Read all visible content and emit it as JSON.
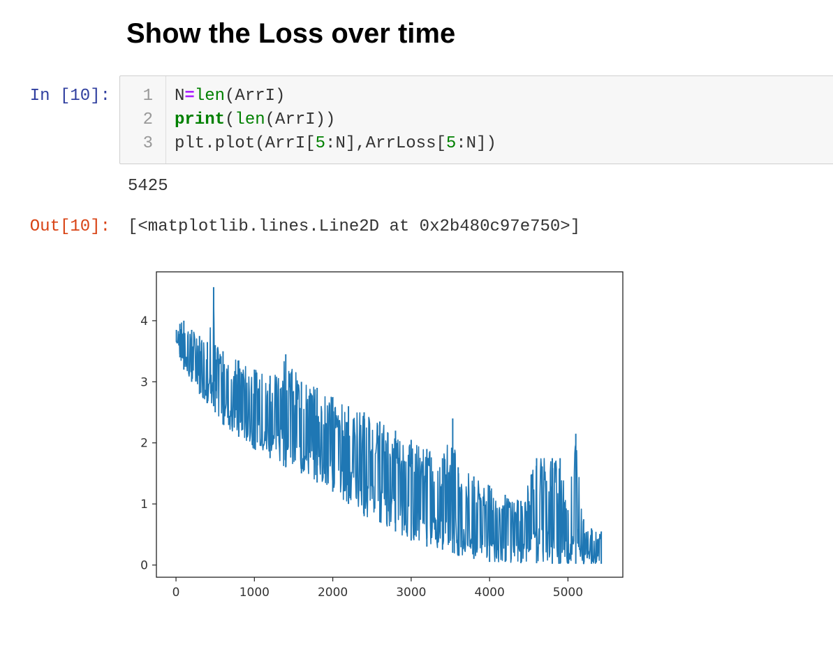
{
  "heading": "Show the Loss over time",
  "cell": {
    "in_prompt": "In [10]:",
    "out_prompt": "Out[10]:",
    "line_numbers": [
      "1",
      "2",
      "3"
    ],
    "code": {
      "line1": {
        "a": "N",
        "op": "=",
        "fn": "len",
        "b": "(ArrI)"
      },
      "line2": {
        "kw": "print",
        "a": "(",
        "fn": "len",
        "b": "(ArrI))"
      },
      "line3": {
        "a": "plt.plot(ArrI[",
        "n1": "5",
        "b": ":N],ArrLoss[",
        "n2": "5",
        "c": ":N])"
      }
    },
    "stdout": "5425",
    "result": "[<matplotlib.lines.Line2D at 0x2b480c97e750>]"
  },
  "chart_data": {
    "type": "line",
    "title": "",
    "xlabel": "",
    "ylabel": "",
    "xlim": [
      -250,
      5700
    ],
    "ylim": [
      -0.2,
      4.8
    ],
    "xticks": [
      0,
      1000,
      2000,
      3000,
      4000,
      5000
    ],
    "yticks": [
      0,
      1,
      2,
      3,
      4
    ],
    "grid": false,
    "line_color": "#1f77b4",
    "series": [
      {
        "x": [
          5,
          50,
          100,
          200,
          300,
          400,
          480,
          500,
          600,
          800,
          1000,
          1200,
          1400,
          1600,
          1800,
          2000,
          2200,
          2400,
          2600,
          2800,
          3000,
          3200,
          3400,
          3530,
          3600,
          3800,
          4000,
          4200,
          4400,
          4600,
          4800,
          4900,
          5000,
          5100,
          5200,
          5300,
          5425
        ],
        "upper": [
          3.85,
          3.95,
          4.0,
          3.85,
          3.75,
          3.65,
          4.55,
          3.6,
          3.5,
          3.35,
          3.2,
          3.1,
          3.45,
          3.0,
          2.9,
          2.75,
          2.6,
          2.5,
          2.35,
          2.2,
          2.05,
          1.9,
          1.75,
          2.4,
          1.6,
          1.45,
          1.3,
          1.15,
          1.05,
          1.75,
          1.75,
          1.75,
          0.9,
          2.15,
          0.75,
          0.6,
          0.55
        ],
        "lower": [
          3.65,
          3.4,
          3.2,
          3.0,
          2.8,
          2.65,
          2.6,
          2.5,
          2.3,
          2.1,
          1.9,
          1.75,
          1.6,
          1.5,
          1.35,
          1.2,
          1.0,
          0.8,
          0.7,
          0.55,
          0.4,
          0.3,
          0.25,
          0.2,
          0.15,
          0.1,
          0.05,
          0.05,
          0.03,
          0.03,
          0.02,
          0.02,
          0.02,
          0.02,
          0.02,
          0.02,
          0.02
        ]
      }
    ]
  }
}
